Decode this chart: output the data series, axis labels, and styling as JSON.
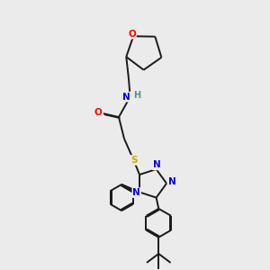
{
  "bg_color": "#ebebeb",
  "bond_color": "#1a1a1a",
  "atom_colors": {
    "O": "#ff0000",
    "N": "#0000ee",
    "S": "#ccaa00",
    "H": "#4a9090",
    "C": "#1a1a1a"
  },
  "line_width": 1.4,
  "figsize": [
    3.0,
    3.0
  ],
  "dpi": 100
}
